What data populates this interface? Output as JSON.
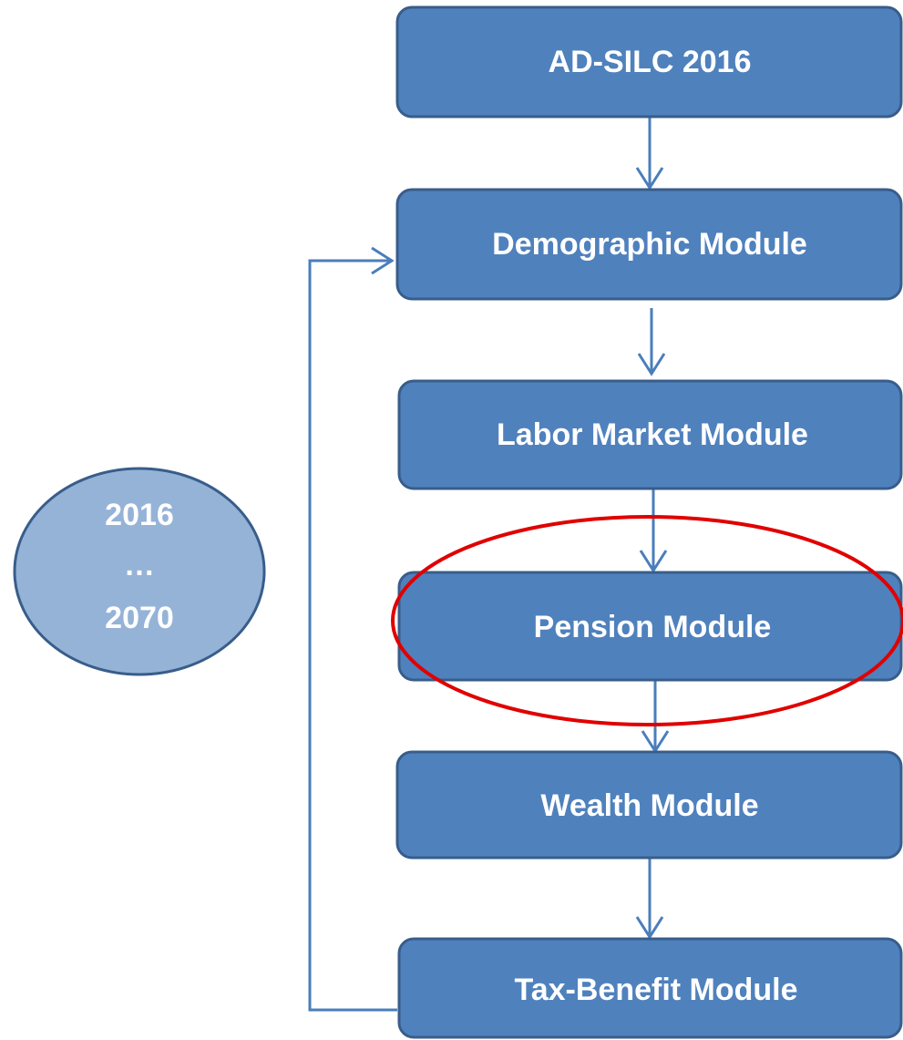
{
  "nodes": [
    {
      "label": "AD-SILC 2016"
    },
    {
      "label": "Demographic Module"
    },
    {
      "label": "Labor Market Module"
    },
    {
      "label": "Pension Module"
    },
    {
      "label": "Wealth Module"
    },
    {
      "label": "Tax-Benefit Module"
    }
  ],
  "cycle": {
    "start": "2016",
    "ellipsis": "…",
    "end": "2070"
  }
}
